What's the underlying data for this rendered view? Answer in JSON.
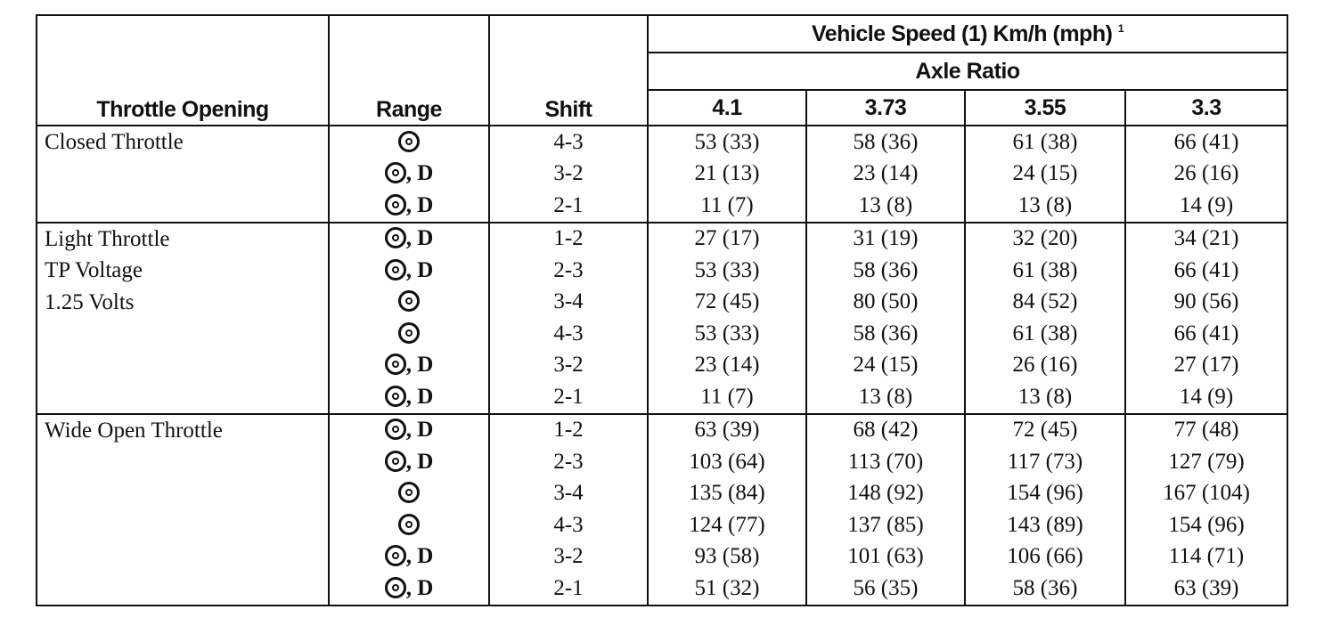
{
  "table": {
    "header": {
      "throttle_opening": "Throttle Opening",
      "range": "Range",
      "shift": "Shift",
      "vehicle_speed": "Vehicle Speed (1) Km/h (mph)",
      "vehicle_speed_footnote": "1",
      "axle_ratio": "Axle Ratio",
      "ratios": [
        "4.1",
        "3.73",
        "3.55",
        "3.3"
      ]
    },
    "groups": [
      {
        "throttle": [
          "Closed Throttle"
        ],
        "rows": [
          {
            "range_symbol": "overdrive-symbol-icon",
            "range_suffix": "",
            "shift": "4-3",
            "speeds": [
              "53 (33)",
              "58 (36)",
              "61 (38)",
              "66 (41)"
            ]
          },
          {
            "range_symbol": "overdrive-symbol-icon",
            "range_suffix": ", D",
            "shift": "3-2",
            "speeds": [
              "21 (13)",
              "23 (14)",
              "24 (15)",
              "26 (16)"
            ]
          },
          {
            "range_symbol": "overdrive-symbol-icon",
            "range_suffix": ", D",
            "shift": "2-1",
            "speeds": [
              "11 (7)",
              "13 (8)",
              "13 (8)",
              "14 (9)"
            ]
          }
        ]
      },
      {
        "throttle": [
          "Light Throttle",
          "TP Voltage",
          "1.25 Volts"
        ],
        "rows": [
          {
            "range_symbol": "overdrive-symbol-icon",
            "range_suffix": ", D",
            "shift": "1-2",
            "speeds": [
              "27 (17)",
              "31 (19)",
              "32 (20)",
              "34 (21)"
            ]
          },
          {
            "range_symbol": "overdrive-symbol-icon",
            "range_suffix": ", D",
            "shift": "2-3",
            "speeds": [
              "53 (33)",
              "58 (36)",
              "61 (38)",
              "66 (41)"
            ]
          },
          {
            "range_symbol": "overdrive-symbol-icon",
            "range_suffix": "",
            "shift": "3-4",
            "speeds": [
              "72 (45)",
              "80 (50)",
              "84 (52)",
              "90 (56)"
            ]
          },
          {
            "range_symbol": "overdrive-symbol-icon",
            "range_suffix": "",
            "shift": "4-3",
            "speeds": [
              "53 (33)",
              "58 (36)",
              "61 (38)",
              "66 (41)"
            ]
          },
          {
            "range_symbol": "overdrive-symbol-icon",
            "range_suffix": ", D",
            "shift": "3-2",
            "speeds": [
              "23 (14)",
              "24 (15)",
              "26 (16)",
              "27 (17)"
            ]
          },
          {
            "range_symbol": "overdrive-symbol-icon",
            "range_suffix": ", D",
            "shift": "2-1",
            "speeds": [
              "11 (7)",
              "13 (8)",
              "13 (8)",
              "14 (9)"
            ]
          }
        ]
      },
      {
        "throttle": [
          "Wide Open Throttle"
        ],
        "rows": [
          {
            "range_symbol": "overdrive-symbol-icon",
            "range_suffix": ", D",
            "shift": "1-2",
            "speeds": [
              "63 (39)",
              "68 (42)",
              "72 (45)",
              "77 (48)"
            ]
          },
          {
            "range_symbol": "overdrive-symbol-icon",
            "range_suffix": ", D",
            "shift": "2-3",
            "speeds": [
              "103 (64)",
              "113 (70)",
              "117 (73)",
              "127 (79)"
            ]
          },
          {
            "range_symbol": "overdrive-symbol-icon",
            "range_suffix": "",
            "shift": "3-4",
            "speeds": [
              "135 (84)",
              "148 (92)",
              "154 (96)",
              "167 (104)"
            ]
          },
          {
            "range_symbol": "overdrive-symbol-icon",
            "range_suffix": "",
            "shift": "4-3",
            "speeds": [
              "124 (77)",
              "137 (85)",
              "143 (89)",
              "154 (96)"
            ]
          },
          {
            "range_symbol": "overdrive-symbol-icon",
            "range_suffix": ", D",
            "shift": "3-2",
            "speeds": [
              "93 (58)",
              "101 (63)",
              "106 (66)",
              "114 (71)"
            ]
          },
          {
            "range_symbol": "overdrive-symbol-icon",
            "range_suffix": ", D",
            "shift": "2-1",
            "speeds": [
              "51 (32)",
              "56 (35)",
              "58 (36)",
              "63 (39)"
            ]
          }
        ]
      }
    ]
  }
}
